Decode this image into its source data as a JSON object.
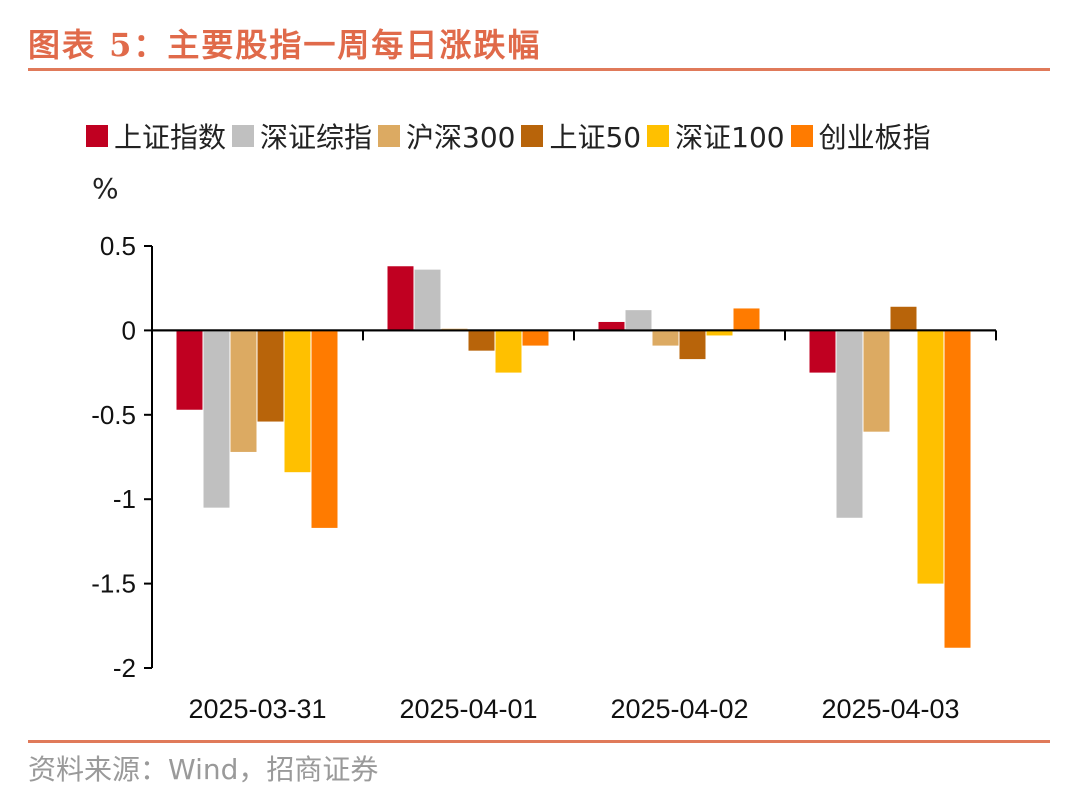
{
  "header": {
    "title": "图表 5：主要股指一周每日涨跌幅"
  },
  "footer": {
    "source": "资料来源：Wind，招商证券"
  },
  "chart_data": {
    "type": "bar",
    "ylabel": "%",
    "ylim": [
      -2,
      0.5
    ],
    "yticks": [
      0.5,
      0,
      -0.5,
      -1,
      -1.5,
      -2
    ],
    "ytick_labels": [
      "0.5",
      "0",
      "-0.5",
      "-1",
      "-1.5",
      "-2"
    ],
    "categories": [
      "2025-03-31",
      "2025-04-01",
      "2025-04-02",
      "2025-04-03"
    ],
    "legend_position": "top",
    "series": [
      {
        "name": "上证指数",
        "color": "#c00021",
        "values": [
          -0.47,
          0.38,
          0.05,
          -0.25
        ]
      },
      {
        "name": "深证综指",
        "color": "#c0c0c0",
        "values": [
          -1.05,
          0.36,
          0.12,
          -1.11
        ]
      },
      {
        "name": "沪深300",
        "color": "#dcaa62",
        "values": [
          -0.72,
          0.01,
          -0.09,
          -0.6
        ]
      },
      {
        "name": "上证50",
        "color": "#b8640a",
        "values": [
          -0.54,
          -0.12,
          -0.17,
          0.14
        ]
      },
      {
        "name": "深证100",
        "color": "#ffc000",
        "values": [
          -0.84,
          -0.25,
          -0.03,
          -1.5
        ]
      },
      {
        "name": "创业板指",
        "color": "#ff7b00",
        "values": [
          -1.17,
          -0.09,
          0.13,
          -1.88
        ]
      }
    ]
  }
}
